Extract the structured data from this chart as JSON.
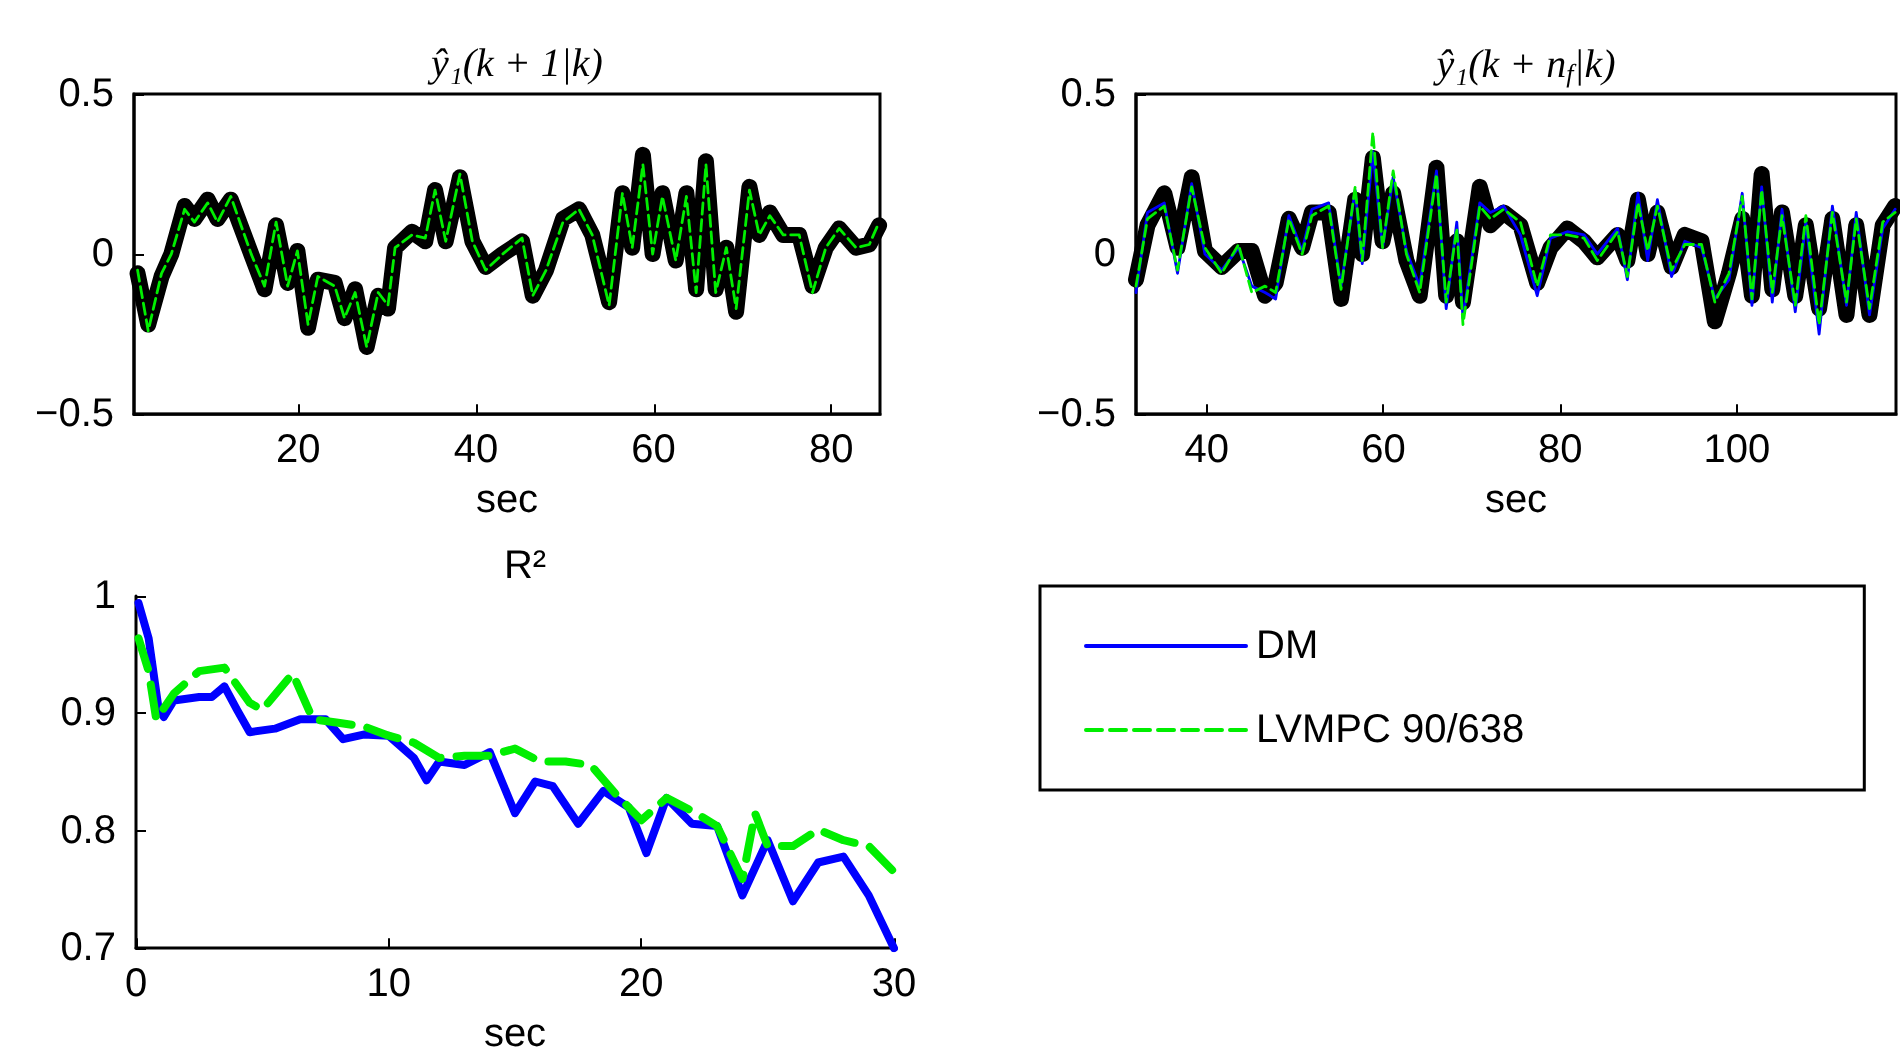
{
  "chart_data": [
    {
      "type": "line",
      "title": "ŷ₁(k + 1|k)",
      "xlabel": "sec",
      "xlim": [
        1.5,
        85.5
      ],
      "xticks": [
        20,
        40,
        60,
        80
      ],
      "ylim": [
        -0.5,
        0.5
      ],
      "yticks": [
        {
          "value": -0.5,
          "label": "−0.5"
        },
        0,
        0.5
      ],
      "legend": false,
      "x": [
        1.9,
        3.1,
        4.6,
        5.7,
        7.2,
        8.3,
        9.8,
        10.9,
        12.4,
        14.7,
        16.2,
        17.5,
        18.8,
        19.9,
        21.1,
        22.2,
        24.1,
        25.2,
        26.4,
        27.7,
        29,
        30.1,
        30.9,
        32.8,
        34.3,
        35.4,
        36.6,
        38.2,
        39.6,
        41.1,
        43,
        45.2,
        46.4,
        47.9,
        49.8,
        51.6,
        53.1,
        55,
        56.5,
        57.6,
        58.8,
        59.9,
        61,
        62.5,
        63.7,
        64.8,
        65.9,
        67,
        68.2,
        69.3,
        70.8,
        71.9,
        73.1,
        74.6,
        76.4,
        77.9,
        79.4,
        80.9,
        82.8,
        84.3,
        85.4
      ],
      "series": [
        {
          "color": "#000000",
          "line_style": "solid",
          "values": [
            -0.06,
            -0.22,
            -0.07,
            0,
            0.15,
            0.11,
            0.17,
            0.11,
            0.17,
            0,
            -0.11,
            0.09,
            -0.09,
            0.01,
            -0.23,
            -0.08,
            -0.09,
            -0.2,
            -0.11,
            -0.29,
            -0.13,
            -0.17,
            0.02,
            0.07,
            0.04,
            0.2,
            0.04,
            0.24,
            0.04,
            -0.04,
            0,
            0.04,
            -0.13,
            -0.05,
            0.11,
            0.14,
            0.06,
            -0.15,
            0.19,
            0.02,
            0.31,
            0,
            0.19,
            -0.02,
            0.19,
            -0.11,
            0.29,
            -0.11,
            0.02,
            -0.18,
            0.21,
            0.06,
            0.13,
            0.06,
            0.06,
            -0.1,
            0.02,
            0.08,
            0.02,
            0.03,
            0.09
          ]
        },
        {
          "color": "#00ee00",
          "line_style": "dashed",
          "values": [
            -0.05,
            -0.24,
            -0.06,
            0,
            0.14,
            0.1,
            0.16,
            0.1,
            0.18,
            0,
            -0.1,
            0.1,
            -0.1,
            0.01,
            -0.22,
            -0.07,
            -0.1,
            -0.2,
            -0.12,
            -0.29,
            -0.12,
            -0.16,
            0.02,
            0.06,
            0.05,
            0.2,
            0.04,
            0.25,
            0.04,
            -0.05,
            0,
            0.05,
            -0.13,
            -0.05,
            0.1,
            0.14,
            0.06,
            -0.16,
            0.19,
            0.02,
            0.28,
            0,
            0.18,
            -0.02,
            0.18,
            -0.12,
            0.28,
            -0.12,
            0.02,
            -0.17,
            0.2,
            0.06,
            0.12,
            0.06,
            0.06,
            -0.12,
            0.02,
            0.08,
            0.02,
            0.03,
            0.1
          ]
        }
      ]
    },
    {
      "type": "line",
      "title": "ŷ₁(k + n$_{f}$|k)",
      "xlabel": "sec",
      "xlim": [
        32,
        118
      ],
      "xticks": [
        40,
        60,
        80,
        100
      ],
      "ylim": [
        -0.5,
        0.5
      ],
      "yticks": [
        {
          "value": -0.5,
          "label": "−0.5"
        },
        0,
        0.5
      ],
      "legend": false,
      "x": [
        32,
        33.3,
        35.2,
        36.7,
        38.3,
        39.8,
        41.7,
        43.6,
        45.1,
        46.6,
        47.8,
        49.3,
        50.8,
        51.9,
        53.8,
        55.2,
        56.8,
        57.6,
        58.8,
        59.9,
        61.1,
        62.6,
        64.1,
        66,
        67.1,
        68.3,
        69,
        70.9,
        72.1,
        73.6,
        75.5,
        77.4,
        78.9,
        80.8,
        82.7,
        84.2,
        86.5,
        87.6,
        88.8,
        89.9,
        91,
        92.6,
        94.1,
        96,
        97.5,
        99.1,
        100.6,
        101.7,
        102.8,
        104,
        105.1,
        106.6,
        107.8,
        109.3,
        110.8,
        112.4,
        113.5,
        115,
        116.5,
        117.9
      ],
      "series": [
        {
          "color": "#000000",
          "line_style": "solid",
          "values": [
            -0.08,
            0.09,
            0.19,
            0.02,
            0.24,
            0.01,
            -0.04,
            0.01,
            0.01,
            -0.13,
            -0.09,
            0.11,
            0.02,
            0.13,
            0.13,
            -0.14,
            0.17,
            0,
            0.3,
            0.04,
            0.19,
            -0.02,
            -0.13,
            0.27,
            -0.13,
            0.04,
            -0.15,
            0.21,
            0.09,
            0.13,
            0.09,
            -0.09,
            0.02,
            0.08,
            0.04,
            -0.01,
            0.06,
            -0.02,
            0.17,
            0,
            0.13,
            -0.04,
            0.06,
            0.04,
            -0.21,
            -0.06,
            0.11,
            -0.13,
            0.25,
            -0.11,
            0.13,
            -0.13,
            0.09,
            -0.17,
            0.11,
            -0.19,
            0.09,
            -0.19,
            0.09,
            0.15
          ]
        },
        {
          "color": "#0000ff",
          "line_style": "solid",
          "values": [
            -0.12,
            0.13,
            0.16,
            -0.06,
            0.22,
            0,
            -0.05,
            0.02,
            -0.1,
            -0.12,
            -0.14,
            0.12,
            0.01,
            0.14,
            0.16,
            -0.1,
            0.2,
            -0.03,
            0.32,
            0.02,
            0.24,
            0.01,
            -0.1,
            0.26,
            -0.17,
            0.1,
            -0.2,
            0.16,
            0.13,
            0.15,
            0.06,
            -0.13,
            0.05,
            0.07,
            0.06,
            0,
            0.08,
            -0.08,
            0.19,
            -0.02,
            0.17,
            -0.07,
            0.04,
            0.02,
            -0.14,
            -0.08,
            0.19,
            -0.16,
            0.21,
            -0.15,
            0.14,
            -0.18,
            0.1,
            -0.25,
            0.15,
            -0.16,
            0.13,
            -0.19,
            0.08,
            0.14
          ]
        },
        {
          "color": "#00ee00",
          "line_style": "dashed",
          "values": [
            -0.1,
            0.11,
            0.15,
            -0.05,
            0.21,
            0.02,
            -0.06,
            0.03,
            -0.12,
            -0.1,
            -0.12,
            0.11,
            0,
            0.12,
            0.15,
            -0.11,
            0.21,
            -0.02,
            0.38,
            0.02,
            0.26,
            0,
            -0.12,
            0.25,
            -0.15,
            0.08,
            -0.22,
            0.15,
            0.11,
            0.14,
            0.1,
            -0.1,
            0.06,
            0.06,
            0.05,
            -0.02,
            0.07,
            -0.07,
            0.16,
            0.01,
            0.15,
            -0.05,
            0.03,
            0.03,
            -0.15,
            -0.06,
            0.18,
            -0.14,
            0.2,
            -0.12,
            0.12,
            -0.16,
            0.12,
            -0.22,
            0.13,
            -0.15,
            0.11,
            -0.17,
            0.1,
            0.13
          ]
        }
      ]
    },
    {
      "type": "line",
      "title": "R²",
      "xlabel": "sec",
      "xlim": [
        0,
        30
      ],
      "xticks": [
        0,
        10,
        20,
        30
      ],
      "ylim": [
        0.7,
        1
      ],
      "yticks": [
        0.7,
        0.8,
        0.9,
        1
      ],
      "legend": "right",
      "series": [
        {
          "name": "DM",
          "color": "#0000ff",
          "line_style": "solid",
          "x": [
            0.1,
            0.5,
            0.9,
            1.1,
            1.5,
            2.5,
            3,
            3.5,
            4,
            4.5,
            5.5,
            6.5,
            7.5,
            8.2,
            9,
            10,
            11,
            11.5,
            12,
            13,
            14,
            15,
            15.8,
            16.5,
            17.5,
            18.5,
            19.5,
            20.2,
            21,
            22,
            23,
            24,
            25,
            26,
            27,
            28,
            29,
            30
          ],
          "values": [
            0.994,
            0.964,
            0.903,
            0.897,
            0.911,
            0.914,
            0.914,
            0.923,
            0.903,
            0.884,
            0.887,
            0.895,
            0.895,
            0.878,
            0.882,
            0.881,
            0.862,
            0.843,
            0.859,
            0.856,
            0.867,
            0.815,
            0.842,
            0.838,
            0.806,
            0.834,
            0.82,
            0.781,
            0.828,
            0.806,
            0.804,
            0.745,
            0.792,
            0.74,
            0.773,
            0.778,
            0.745,
            0.7
          ]
        },
        {
          "name": "LVMPC 90/638",
          "color": "#00ee00",
          "line_style": "dashed",
          "x": [
            0.1,
            0.5,
            0.8,
            1.5,
            2.5,
            3.5,
            4.5,
            5,
            6.2,
            7,
            8,
            9,
            10,
            11,
            12,
            13,
            14,
            15,
            16,
            17,
            18,
            19,
            20,
            21,
            22,
            23,
            24,
            24.5,
            25,
            26,
            27,
            28,
            29,
            30
          ],
          "values": [
            0.964,
            0.936,
            0.895,
            0.917,
            0.936,
            0.939,
            0.909,
            0.903,
            0.934,
            0.895,
            0.892,
            0.889,
            0.881,
            0.875,
            0.862,
            0.864,
            0.864,
            0.87,
            0.859,
            0.859,
            0.856,
            0.831,
            0.809,
            0.828,
            0.817,
            0.804,
            0.759,
            0.815,
            0.787,
            0.787,
            0.801,
            0.792,
            0.787,
            0.765
          ]
        }
      ]
    }
  ]
}
